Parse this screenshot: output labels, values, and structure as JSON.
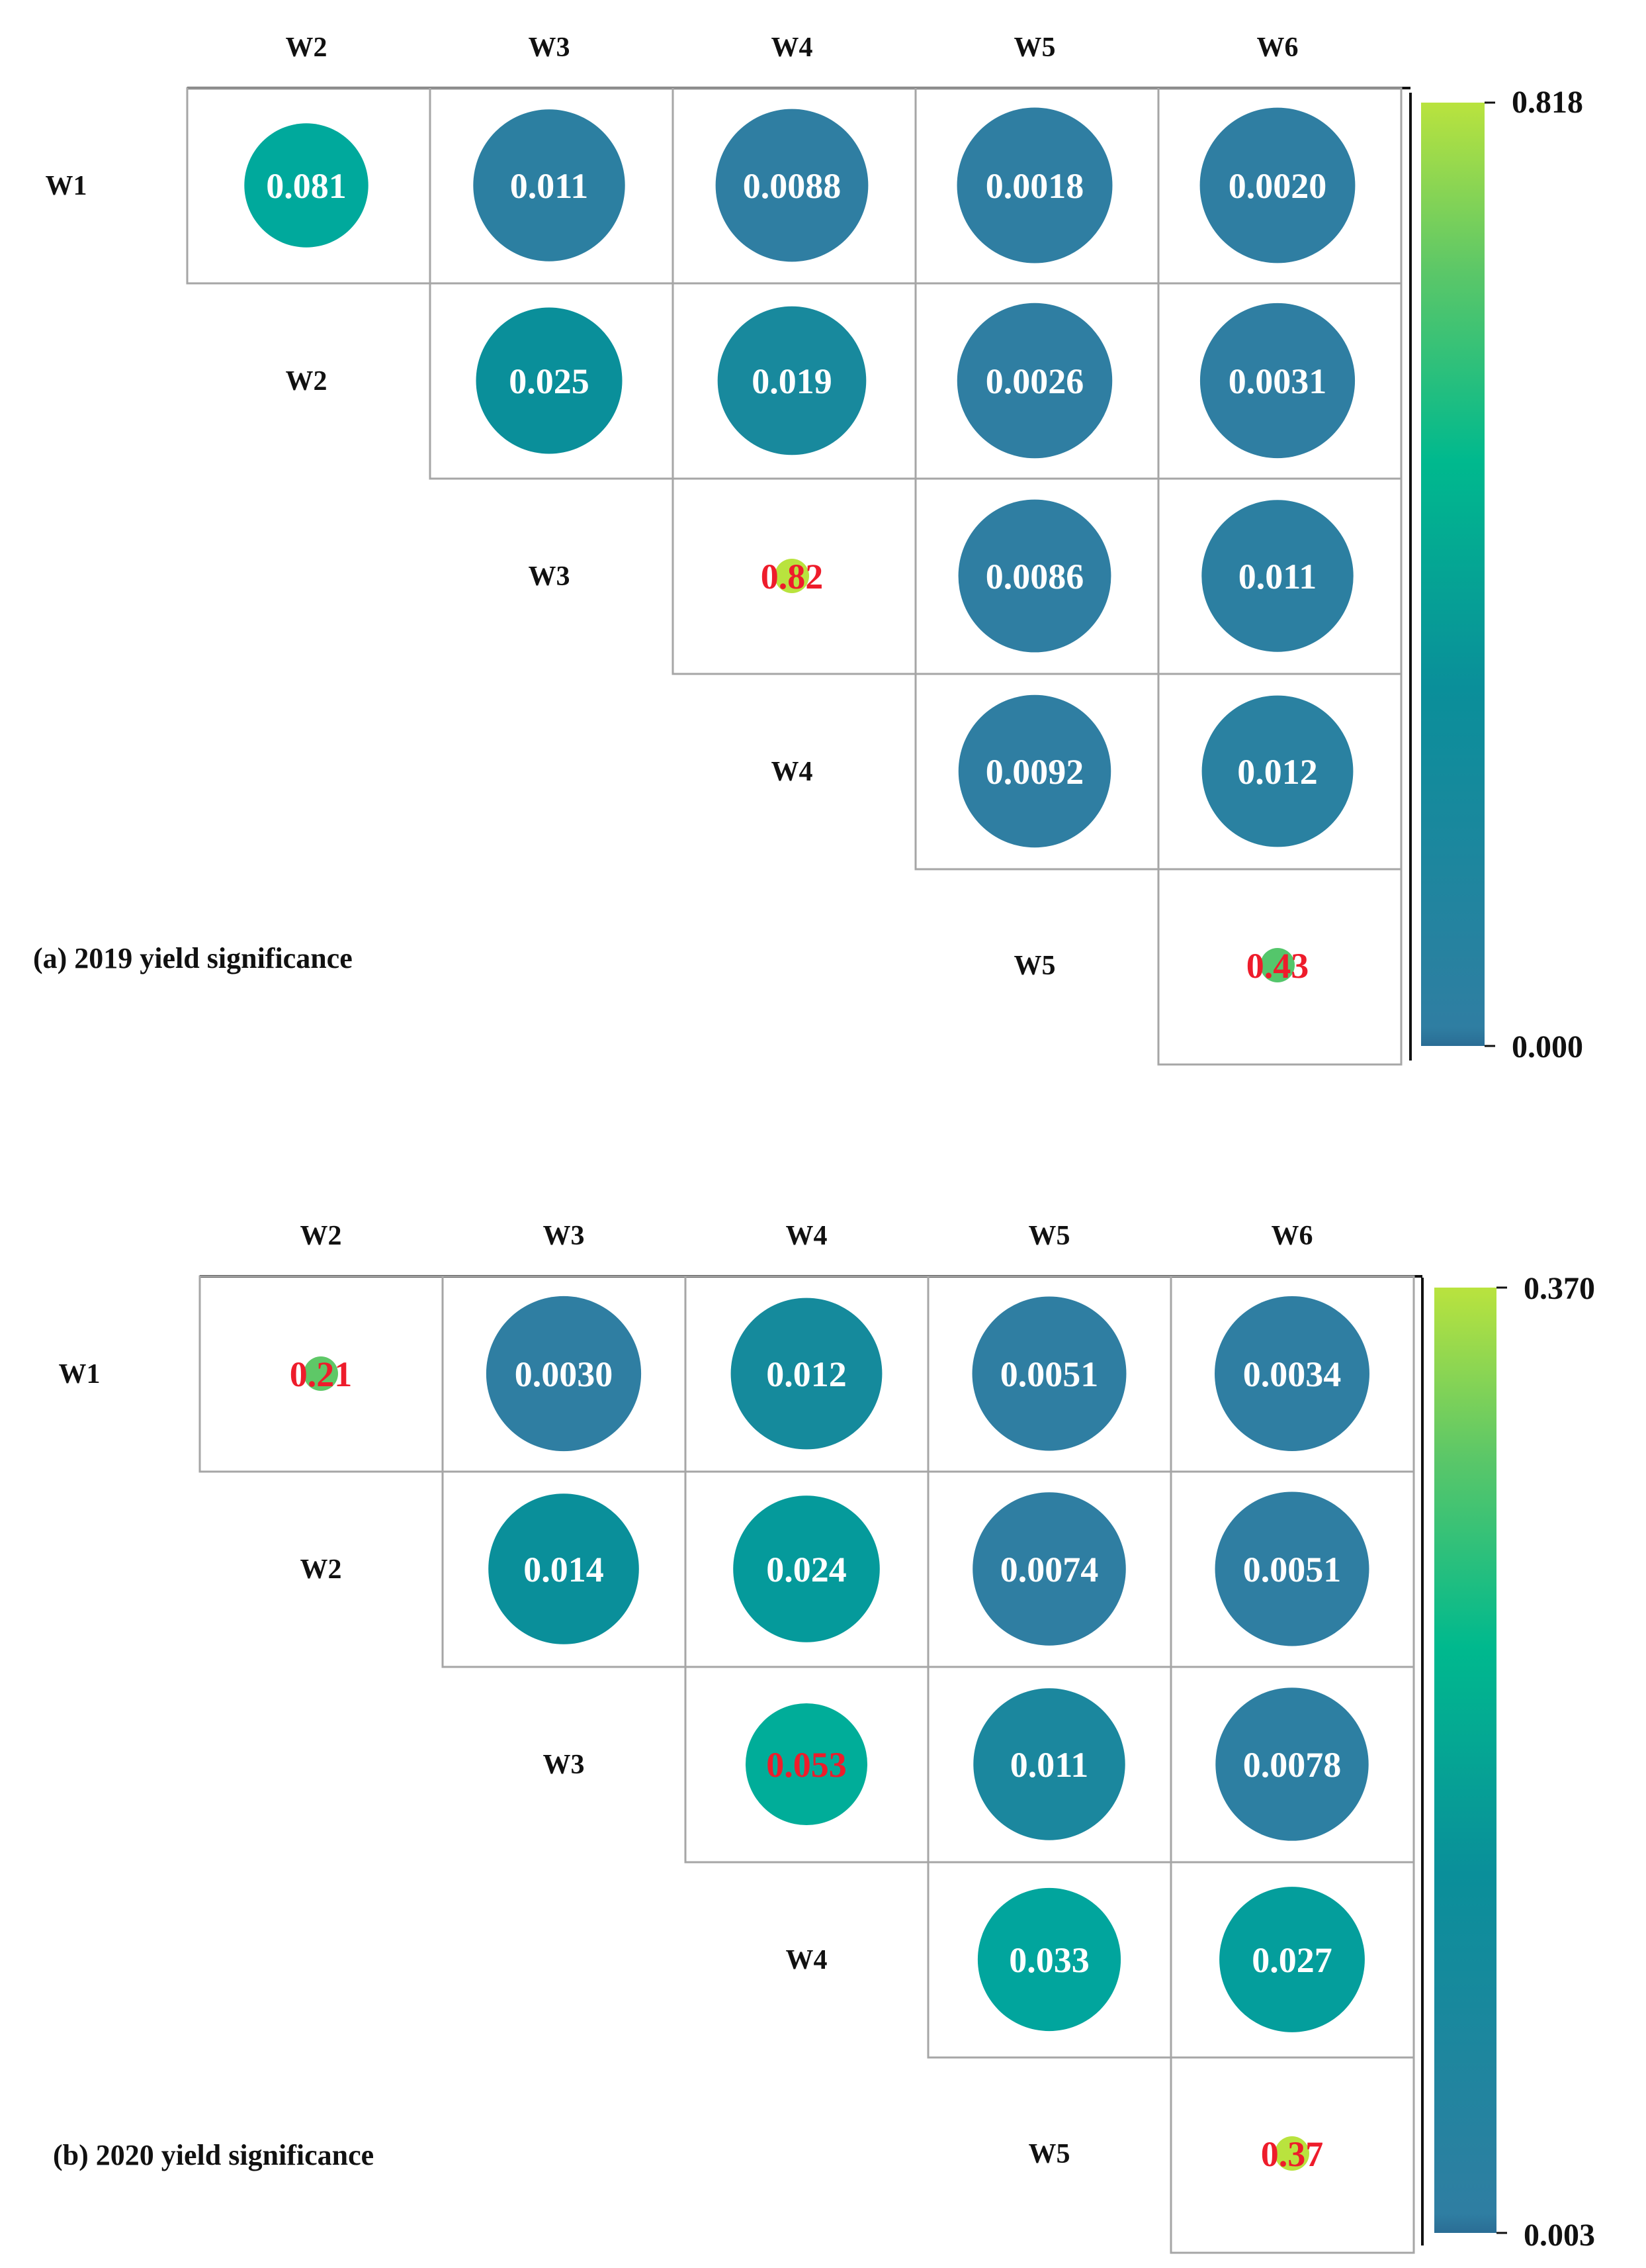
{
  "chart_data": [
    {
      "type": "heatmap",
      "title": "(a) 2019 yield significance",
      "columns": [
        "W2",
        "W3",
        "W4",
        "W5",
        "W6"
      ],
      "rows": [
        "W1",
        "W2",
        "W3",
        "W4",
        "W5"
      ],
      "colorbar": {
        "min": 0.0,
        "max": 0.818,
        "min_label": "0.000",
        "max_label": "0.818"
      },
      "cells": [
        {
          "row": "W1",
          "col": "W2",
          "value": 0.081,
          "label": "0.081",
          "significant": false
        },
        {
          "row": "W1",
          "col": "W3",
          "value": 0.011,
          "label": "0.011",
          "significant": false
        },
        {
          "row": "W1",
          "col": "W4",
          "value": 0.0088,
          "label": "0.0088",
          "significant": false
        },
        {
          "row": "W1",
          "col": "W5",
          "value": 0.0018,
          "label": "0.0018",
          "significant": false
        },
        {
          "row": "W1",
          "col": "W6",
          "value": 0.002,
          "label": "0.0020",
          "significant": false
        },
        {
          "row": "W2",
          "col": "W3",
          "value": 0.025,
          "label": "0.025",
          "significant": false
        },
        {
          "row": "W2",
          "col": "W4",
          "value": 0.019,
          "label": "0.019",
          "significant": false
        },
        {
          "row": "W2",
          "col": "W5",
          "value": 0.0026,
          "label": "0.0026",
          "significant": false
        },
        {
          "row": "W2",
          "col": "W6",
          "value": 0.0031,
          "label": "0.0031",
          "significant": false
        },
        {
          "row": "W3",
          "col": "W4",
          "value": 0.82,
          "label": "0.82",
          "significant": true
        },
        {
          "row": "W3",
          "col": "W5",
          "value": 0.0086,
          "label": "0.0086",
          "significant": false
        },
        {
          "row": "W3",
          "col": "W6",
          "value": 0.011,
          "label": "0.011",
          "significant": false
        },
        {
          "row": "W4",
          "col": "W5",
          "value": 0.0092,
          "label": "0.0092",
          "significant": false
        },
        {
          "row": "W4",
          "col": "W6",
          "value": 0.012,
          "label": "0.012",
          "significant": false
        },
        {
          "row": "W5",
          "col": "W6",
          "value": 0.43,
          "label": "0.43",
          "significant": true
        }
      ]
    },
    {
      "type": "heatmap",
      "title": "(b) 2020 yield significance",
      "columns": [
        "W2",
        "W3",
        "W4",
        "W5",
        "W6"
      ],
      "rows": [
        "W1",
        "W2",
        "W3",
        "W4",
        "W5"
      ],
      "colorbar": {
        "min": 0.003,
        "max": 0.37,
        "min_label": "0.003",
        "max_label": "0.370"
      },
      "cells": [
        {
          "row": "W1",
          "col": "W2",
          "value": 0.21,
          "label": "0.21",
          "significant": true
        },
        {
          "row": "W1",
          "col": "W3",
          "value": 0.003,
          "label": "0.0030",
          "significant": false
        },
        {
          "row": "W1",
          "col": "W4",
          "value": 0.012,
          "label": "0.012",
          "significant": false
        },
        {
          "row": "W1",
          "col": "W5",
          "value": 0.0051,
          "label": "0.0051",
          "significant": false
        },
        {
          "row": "W1",
          "col": "W6",
          "value": 0.0034,
          "label": "0.0034",
          "significant": false
        },
        {
          "row": "W2",
          "col": "W3",
          "value": 0.014,
          "label": "0.014",
          "significant": false
        },
        {
          "row": "W2",
          "col": "W4",
          "value": 0.024,
          "label": "0.024",
          "significant": false
        },
        {
          "row": "W2",
          "col": "W5",
          "value": 0.0074,
          "label": "0.0074",
          "significant": false
        },
        {
          "row": "W2",
          "col": "W6",
          "value": 0.0051,
          "label": "0.0051",
          "significant": false
        },
        {
          "row": "W3",
          "col": "W4",
          "value": 0.053,
          "label": "0.053",
          "significant": true
        },
        {
          "row": "W3",
          "col": "W5",
          "value": 0.011,
          "label": "0.011",
          "significant": false
        },
        {
          "row": "W3",
          "col": "W6",
          "value": 0.0078,
          "label": "0.0078",
          "significant": false
        },
        {
          "row": "W4",
          "col": "W5",
          "value": 0.033,
          "label": "0.033",
          "significant": false
        },
        {
          "row": "W4",
          "col": "W6",
          "value": 0.027,
          "label": "0.027",
          "significant": false
        },
        {
          "row": "W5",
          "col": "W6",
          "value": 0.37,
          "label": "0.37",
          "significant": true
        }
      ]
    }
  ],
  "colors": {
    "low": "#2f7ea2",
    "mid_low": "#0a8f9a",
    "mid": "#00b397",
    "mid_high": "#5bc768",
    "high": "#b9e33e",
    "bottom_band": "#2a6d95",
    "significant_text": "#ee1c2b",
    "normal_text": "#ffffff",
    "grid": "#a6a6a6",
    "frame": "#111111"
  }
}
